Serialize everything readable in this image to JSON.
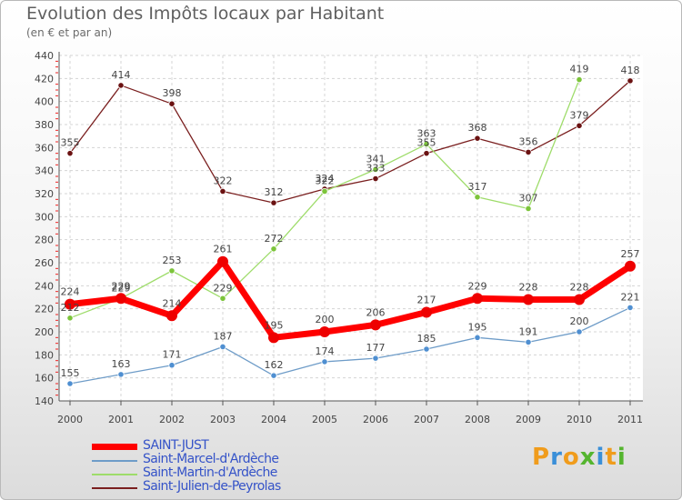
{
  "header": {
    "title": "Evolution des Impôts locaux par Habitant",
    "subtitle": "(en € et par an)"
  },
  "chart_data": {
    "type": "line",
    "title": "Evolution des Impôts locaux par Habitant",
    "subtitle": "(en € et par an)",
    "xlabel": "",
    "ylabel": "",
    "x": [
      "2000",
      "2001",
      "2002",
      "2003",
      "2004",
      "2005",
      "2006",
      "2007",
      "2008",
      "2009",
      "2010",
      "2011"
    ],
    "ylim": [
      140,
      440
    ],
    "yticks": [
      140,
      160,
      180,
      200,
      220,
      240,
      260,
      280,
      300,
      320,
      340,
      360,
      380,
      400,
      420,
      440
    ],
    "grid": true,
    "legend_position": "bottom-left",
    "series": [
      {
        "name": "Saint-Julien-de-Peyrolas",
        "color": "#7a1f1f",
        "point_color": "#6b1212",
        "values": [
          355,
          414,
          398,
          322,
          312,
          324,
          333,
          355,
          368,
          356,
          379,
          418
        ],
        "labels": [
          "355",
          "414",
          "398",
          "322",
          "312",
          "324",
          "333",
          "355",
          "368",
          "356",
          "379",
          "418"
        ]
      },
      {
        "name": "Saint-Martin-d'Ardèche",
        "color": "#9edc6a",
        "point_color": "#7cc43a",
        "values": [
          212,
          229,
          253,
          229,
          272,
          322,
          341,
          363,
          317,
          307,
          419,
          null
        ],
        "labels": [
          "212",
          "229",
          "253",
          "229",
          "272",
          "322",
          "341",
          "363",
          "317",
          "307",
          "419",
          null
        ]
      },
      {
        "name": "Saint-Marcel-d'Ardèche",
        "color": "#6e9cc8",
        "point_color": "#4f8fd1",
        "values": [
          155,
          163,
          171,
          187,
          162,
          174,
          177,
          185,
          195,
          191,
          200,
          221
        ],
        "labels": [
          "155",
          "163",
          "171",
          "187",
          "162",
          "174",
          "177",
          "185",
          "195",
          "191",
          "200",
          "221"
        ]
      },
      {
        "name": "SAINT-JUST",
        "color": "#ff0000",
        "point_color": "#ee0000",
        "values": [
          224,
          229,
          214,
          261,
          195,
          200,
          206,
          217,
          229,
          228,
          228,
          257
        ],
        "labels": [
          "224",
          "229",
          "214",
          "261",
          "195",
          "200",
          "206",
          "217",
          "229",
          "228",
          "228",
          "257"
        ]
      }
    ]
  },
  "legend": {
    "items": [
      {
        "name": "SAINT-JUST",
        "color": "#ff0000"
      },
      {
        "name": "Saint-Marcel-d'Ardèche",
        "color": "#6e9cc8"
      },
      {
        "name": "Saint-Martin-d'Ardèche",
        "color": "#9edc6a"
      },
      {
        "name": "Saint-Julien-de-Peyrolas",
        "color": "#7a1f1f"
      }
    ]
  },
  "logo": {
    "letters": [
      "P",
      "r",
      "o",
      "x",
      "i",
      "t",
      "i"
    ],
    "colors": [
      "#f09c1c",
      "#3a8fd8",
      "#f09c1c",
      "#55b52f",
      "#3a8fd8",
      "#f09c1c",
      "#55b52f"
    ]
  }
}
